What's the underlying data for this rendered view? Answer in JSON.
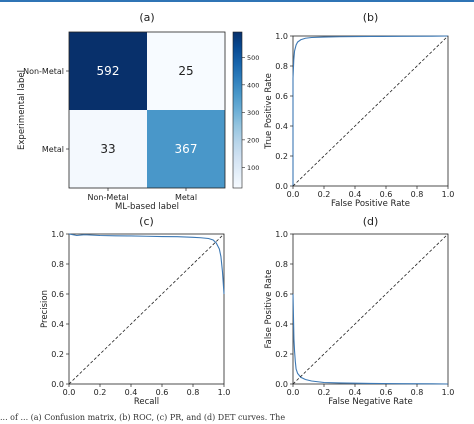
{
  "caption": "... of ... (a) Confusion matrix, (b) ROC, (c) PR, and (d) DET curves. The",
  "chart_data": [
    {
      "type": "heatmap",
      "panel_label": "(a)",
      "xlabel": "ML-based label",
      "ylabel": "Experimental label",
      "x_categories": [
        "Non-Metal",
        "Metal"
      ],
      "y_categories": [
        "Non-Metal",
        "Metal"
      ],
      "matrix": [
        [
          592,
          25
        ],
        [
          33,
          367
        ]
      ],
      "colorbar": {
        "ticks": [
          "100",
          "200",
          "300",
          "400",
          "500"
        ],
        "range": [
          25,
          592
        ],
        "colormap": "Blues"
      }
    },
    {
      "type": "line",
      "panel_label": "(b)",
      "xlabel": "False Positive Rate",
      "ylabel": "True Positive Rate",
      "xlim": [
        0,
        1
      ],
      "ylim": [
        0,
        1
      ],
      "xticks": [
        "0.0",
        "0.2",
        "0.4",
        "0.6",
        "0.8",
        "1.0"
      ],
      "yticks": [
        "0.0",
        "0.2",
        "0.4",
        "0.6",
        "0.8",
        "1.0"
      ],
      "series": [
        {
          "x": [
            0,
            0,
            0.005,
            0.01,
            0.02,
            0.03,
            0.05,
            0.08,
            0.12,
            0.2,
            0.3,
            0.5,
            0.7,
            0.9,
            1.0
          ],
          "y": [
            0,
            0.72,
            0.84,
            0.9,
            0.94,
            0.96,
            0.975,
            0.985,
            0.99,
            0.993,
            0.995,
            0.997,
            0.998,
            0.999,
            1.0
          ],
          "color": "#3c78b4",
          "style": "solid"
        },
        {
          "x": [
            0,
            1
          ],
          "y": [
            0,
            1
          ],
          "color": "#222222",
          "style": "dashed"
        }
      ]
    },
    {
      "type": "line",
      "panel_label": "(c)",
      "xlabel": "Recall",
      "ylabel": "Precision",
      "xlim": [
        0,
        1
      ],
      "ylim": [
        0,
        1
      ],
      "xticks": [
        "0.0",
        "0.2",
        "0.4",
        "0.6",
        "0.8",
        "1.0"
      ],
      "yticks": [
        "0.0",
        "0.2",
        "0.4",
        "0.6",
        "0.8",
        "1.0"
      ],
      "series": [
        {
          "x": [
            0,
            0.05,
            0.1,
            0.2,
            0.3,
            0.4,
            0.5,
            0.6,
            0.7,
            0.8,
            0.85,
            0.9,
            0.93,
            0.95,
            0.97,
            0.98,
            0.99,
            1.0
          ],
          "y": [
            1.0,
            0.99,
            0.995,
            0.99,
            0.988,
            0.987,
            0.985,
            0.983,
            0.982,
            0.978,
            0.975,
            0.97,
            0.96,
            0.94,
            0.9,
            0.85,
            0.75,
            0.6
          ],
          "color": "#3c78b4",
          "style": "solid"
        },
        {
          "x": [
            0,
            1
          ],
          "y": [
            0,
            1
          ],
          "color": "#222222",
          "style": "dashed"
        }
      ]
    },
    {
      "type": "line",
      "panel_label": "(d)",
      "xlabel": "False Negative Rate",
      "ylabel": "False Positive Rate",
      "xlim": [
        0,
        1
      ],
      "ylim": [
        0,
        1
      ],
      "xticks": [
        "0.0",
        "0.2",
        "0.4",
        "0.6",
        "0.8",
        "1.0"
      ],
      "yticks": [
        "0.0",
        "0.2",
        "0.4",
        "0.6",
        "0.8",
        "1.0"
      ],
      "series": [
        {
          "x": [
            0,
            0.003,
            0.006,
            0.01,
            0.015,
            0.02,
            0.03,
            0.05,
            0.08,
            0.12,
            0.2,
            0.3,
            0.5,
            0.7,
            0.9,
            1.0
          ],
          "y": [
            0.6,
            0.45,
            0.3,
            0.22,
            0.15,
            0.1,
            0.07,
            0.045,
            0.03,
            0.02,
            0.01,
            0.007,
            0.004,
            0.002,
            0.001,
            0.0
          ],
          "color": "#3c78b4",
          "style": "solid"
        },
        {
          "x": [
            0,
            1
          ],
          "y": [
            0,
            1
          ],
          "color": "#222222",
          "style": "dashed"
        }
      ]
    }
  ]
}
